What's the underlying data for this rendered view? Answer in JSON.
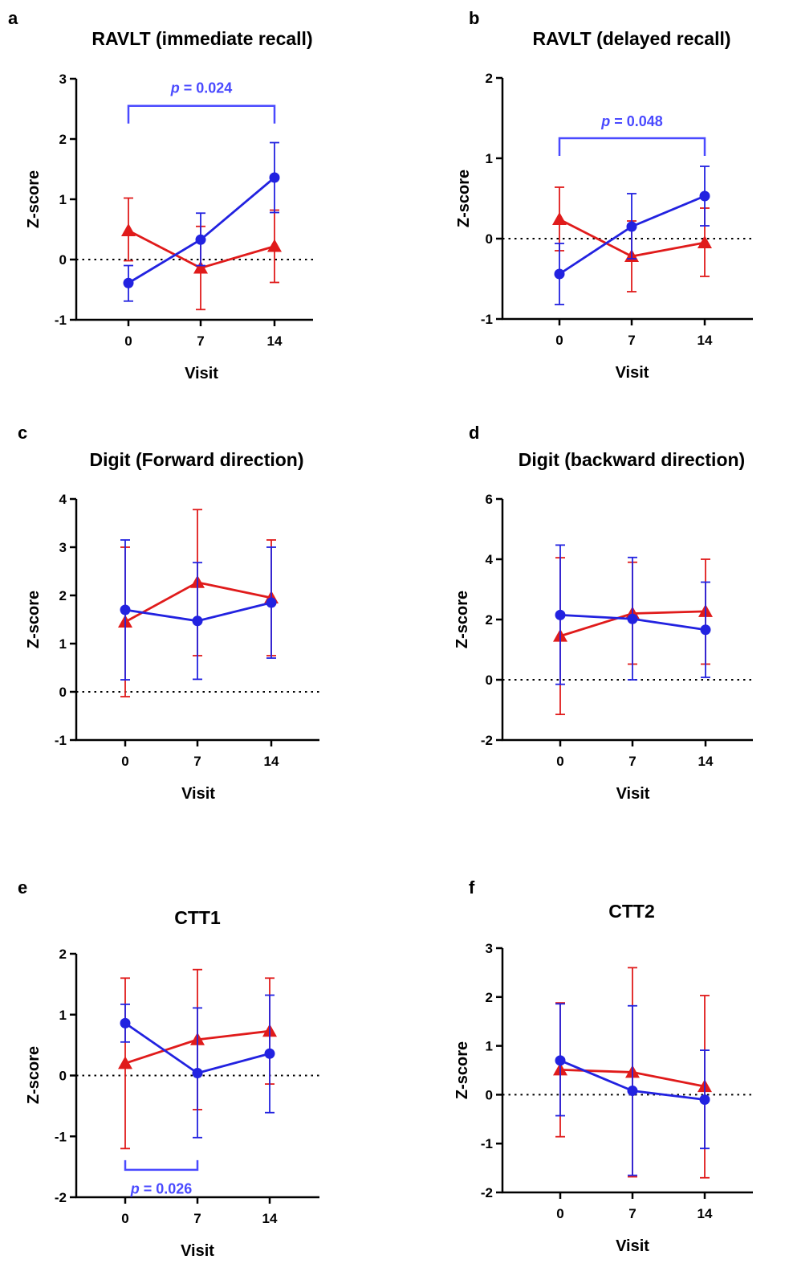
{
  "colors": {
    "group_a": "#2222e0",
    "group_b": "#e01b1b",
    "p_text": "#4a4aff",
    "bracket": "#4a4aff"
  },
  "chart_data": [
    {
      "type": "line",
      "panel": "a",
      "title": "RAVLT (immediate recall)",
      "xlabel": "Visit",
      "ylabel": "Z-score",
      "categories": [
        "0",
        "7",
        "14"
      ],
      "ylim": [
        -1,
        3
      ],
      "yticks": [
        "-1",
        "0",
        "1",
        "2",
        "3"
      ],
      "series": [
        {
          "marker": "triangle",
          "color_key": "group_b",
          "values": [
            0.48,
            -0.14,
            0.22
          ],
          "err_hi": [
            1.02,
            0.55,
            0.82
          ],
          "err_lo": [
            -0.02,
            -0.83,
            -0.38
          ]
        },
        {
          "marker": "circle",
          "color_key": "group_a",
          "values": [
            -0.39,
            0.33,
            1.36
          ],
          "err_hi": [
            -0.1,
            0.77,
            1.94
          ],
          "err_lo": [
            -0.69,
            -0.1,
            0.78
          ]
        }
      ],
      "annotations": [
        {
          "label": "p = 0.024",
          "from": "0",
          "to": "14",
          "y": 2.55,
          "text_y": 2.85,
          "side": "top"
        }
      ]
    },
    {
      "type": "line",
      "panel": "b",
      "title": "RAVLT (delayed recall)",
      "xlabel": "Visit",
      "ylabel": "Z-score",
      "categories": [
        "0",
        "7",
        "14"
      ],
      "ylim": [
        -1,
        2
      ],
      "yticks": [
        "-1",
        "0",
        "1",
        "2"
      ],
      "series": [
        {
          "marker": "triangle",
          "color_key": "group_b",
          "values": [
            0.24,
            -0.22,
            -0.05
          ],
          "err_hi": [
            0.64,
            0.22,
            0.38
          ],
          "err_lo": [
            -0.15,
            -0.66,
            -0.47
          ]
        },
        {
          "marker": "circle",
          "color_key": "group_a",
          "values": [
            -0.44,
            0.15,
            0.53
          ],
          "err_hi": [
            -0.06,
            0.56,
            0.9
          ],
          "err_lo": [
            -0.82,
            -0.25,
            0.16
          ]
        }
      ],
      "annotations": [
        {
          "label": "p = 0.048",
          "from": "0",
          "to": "14",
          "y": 1.25,
          "text_y": 1.46,
          "side": "top"
        }
      ]
    },
    {
      "type": "line",
      "panel": "c",
      "title": "Digit (Forward direction)",
      "xlabel": "Visit",
      "ylabel": "Z-score",
      "categories": [
        "0",
        "7",
        "14"
      ],
      "ylim": [
        -1,
        4
      ],
      "yticks": [
        "-1",
        "0",
        "1",
        "2",
        "3",
        "4"
      ],
      "series": [
        {
          "marker": "triangle",
          "color_key": "group_b",
          "values": [
            1.45,
            2.27,
            1.95
          ],
          "err_hi": [
            3.0,
            3.78,
            3.15
          ],
          "err_lo": [
            -0.1,
            0.75,
            0.75
          ]
        },
        {
          "marker": "circle",
          "color_key": "group_a",
          "values": [
            1.7,
            1.47,
            1.85
          ],
          "err_hi": [
            3.15,
            2.68,
            3.0
          ],
          "err_lo": [
            0.25,
            0.26,
            0.7
          ]
        }
      ],
      "annotations": []
    },
    {
      "type": "line",
      "panel": "d",
      "title": "Digit (backward direction)",
      "xlabel": "Visit",
      "ylabel": "Z-score",
      "categories": [
        "0",
        "7",
        "14"
      ],
      "ylim": [
        -2,
        6
      ],
      "yticks": [
        "-2",
        "0",
        "2",
        "4",
        "6"
      ],
      "series": [
        {
          "marker": "triangle",
          "color_key": "group_b",
          "values": [
            1.45,
            2.2,
            2.27
          ],
          "err_hi": [
            4.05,
            3.9,
            4.0
          ],
          "err_lo": [
            -1.15,
            0.52,
            0.52
          ]
        },
        {
          "marker": "circle",
          "color_key": "group_a",
          "values": [
            2.15,
            2.02,
            1.66
          ],
          "err_hi": [
            4.47,
            4.06,
            3.24
          ],
          "err_lo": [
            -0.15,
            0.0,
            0.08
          ]
        }
      ],
      "annotations": []
    },
    {
      "type": "line",
      "panel": "e",
      "title": "CTT1",
      "xlabel": "Visit",
      "ylabel": "Z-score",
      "categories": [
        "0",
        "7",
        "14"
      ],
      "ylim": [
        -2,
        2
      ],
      "yticks": [
        "-2",
        "-1",
        "0",
        "1",
        "2"
      ],
      "series": [
        {
          "marker": "triangle",
          "color_key": "group_b",
          "values": [
            0.2,
            0.59,
            0.73
          ],
          "err_hi": [
            1.6,
            1.74,
            1.6
          ],
          "err_lo": [
            -1.2,
            -0.56,
            -0.14
          ]
        },
        {
          "marker": "circle",
          "color_key": "group_a",
          "values": [
            0.86,
            0.04,
            0.36
          ],
          "err_hi": [
            1.17,
            1.11,
            1.32
          ],
          "err_lo": [
            0.55,
            -1.02,
            -0.61
          ]
        }
      ],
      "annotations": [
        {
          "label": "p = 0.026",
          "from": "0",
          "to": "7",
          "y": -1.55,
          "text_y": -1.86,
          "side": "bottom"
        }
      ]
    },
    {
      "type": "line",
      "panel": "f",
      "title": "CTT2",
      "xlabel": "Visit",
      "ylabel": "Z-score",
      "categories": [
        "0",
        "7",
        "14"
      ],
      "ylim": [
        -2,
        3
      ],
      "yticks": [
        "-2",
        "-1",
        "0",
        "1",
        "2",
        "3"
      ],
      "series": [
        {
          "marker": "triangle",
          "color_key": "group_b",
          "values": [
            0.51,
            0.46,
            0.17
          ],
          "err_hi": [
            1.88,
            2.6,
            2.03
          ],
          "err_lo": [
            -0.86,
            -1.68,
            -1.7
          ]
        },
        {
          "marker": "circle",
          "color_key": "group_a",
          "values": [
            0.7,
            0.08,
            -0.1
          ],
          "err_hi": [
            1.86,
            1.82,
            0.91
          ],
          "err_lo": [
            -0.43,
            -1.65,
            -1.1
          ]
        }
      ],
      "annotations": []
    }
  ]
}
